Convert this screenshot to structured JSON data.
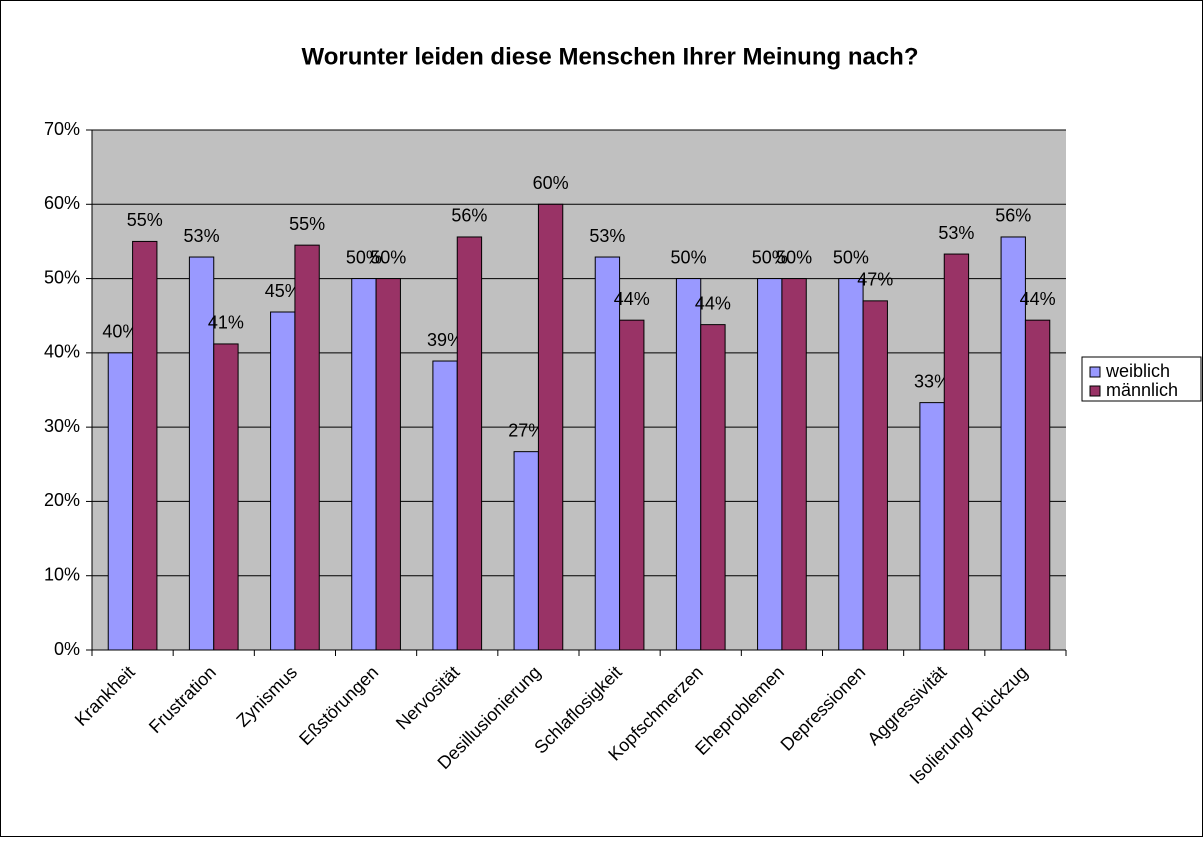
{
  "chart_data": {
    "type": "bar",
    "title": "Worunter leiden diese Menschen Ihrer Meinung nach?",
    "categories": [
      "Krankheit",
      "Frustration",
      "Zynismus",
      "Eßstörungen",
      "Nervosität",
      "Desillusionierung",
      "Schlaflosigkeit",
      "Kopfschmerzen",
      "Eheproblemen",
      "Depressionen",
      "Aggressivität",
      "Isolierung/ Rückzug"
    ],
    "series": [
      {
        "name": "weiblich",
        "color": "#9999ff",
        "values": [
          40,
          52.9,
          45.5,
          50,
          38.9,
          26.7,
          52.9,
          50,
          50,
          50,
          33.3,
          55.6
        ],
        "value_labels": [
          "40%",
          "53%",
          "45%",
          "50%",
          "39%",
          "27%",
          "53%",
          "50%",
          "50%",
          "50%",
          "33%",
          "56%"
        ]
      },
      {
        "name": "männlich",
        "color": "#993366",
        "values": [
          55,
          41.2,
          54.5,
          50,
          55.6,
          60,
          44.4,
          43.8,
          50,
          47,
          53.3,
          44.4
        ],
        "value_labels": [
          "55%",
          "41%",
          "55%",
          "50%",
          "56%",
          "60%",
          "44%",
          "44%",
          "50%",
          "47%",
          "53%",
          "44%"
        ]
      }
    ],
    "ylim": [
      0,
      70
    ],
    "yticks": [
      {
        "value": 0,
        "label": "0%"
      },
      {
        "value": 10,
        "label": "10%"
      },
      {
        "value": 20,
        "label": "20%"
      },
      {
        "value": 30,
        "label": "30%"
      },
      {
        "value": 40,
        "label": "40%"
      },
      {
        "value": 50,
        "label": "50%"
      },
      {
        "value": 60,
        "label": "60%"
      },
      {
        "value": 70,
        "label": "70%"
      }
    ],
    "grid": true,
    "legend": "right"
  }
}
